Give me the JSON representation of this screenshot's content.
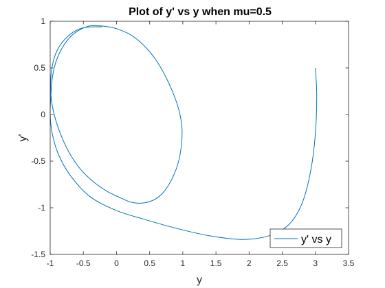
{
  "chart_data": {
    "type": "line",
    "title": "Plot of y' vs y when mu=0.5",
    "xlabel": "y",
    "ylabel": "y'",
    "xlim": [
      -1,
      3.5
    ],
    "ylim": [
      -1.5,
      1
    ],
    "xticks": [
      -1,
      -0.5,
      0,
      0.5,
      1,
      1.5,
      2,
      2.5,
      3,
      3.5
    ],
    "yticks": [
      -1.5,
      -1,
      -0.5,
      0,
      0.5,
      1
    ],
    "xtick_labels": [
      "-1",
      "-0.5",
      "0",
      "0.5",
      "1",
      "1.5",
      "2",
      "2.5",
      "3",
      "3.5"
    ],
    "ytick_labels": [
      "-1.5",
      "-1",
      "-0.5",
      "0",
      "0.5",
      "1"
    ],
    "grid": false,
    "legend": {
      "position": "bottom-right",
      "entries": [
        "y' vs y"
      ]
    },
    "series": [
      {
        "name": "y' vs y",
        "color": "#0072BD",
        "x": [
          3.0,
          3.02,
          3.0,
          2.93,
          2.8,
          2.6,
          2.3,
          1.9,
          1.4,
          0.9,
          0.4,
          0.0,
          -0.4,
          -0.7,
          -0.88,
          -0.97,
          -1.0,
          -0.99,
          -0.97,
          -0.92,
          -0.83,
          -0.7,
          -0.55,
          -0.4,
          -0.25,
          -0.12,
          0.0,
          0.2,
          0.4,
          0.6,
          0.78,
          0.92,
          0.985,
          0.98,
          0.93,
          0.83,
          0.7,
          0.55,
          0.38,
          0.22,
          0.05,
          -0.15,
          -0.35,
          -0.55,
          -0.72,
          -0.86,
          -0.95,
          -0.99,
          -0.99,
          -0.96,
          -0.9,
          -0.8,
          -0.66,
          -0.5,
          -0.35,
          -0.22
        ],
        "y": [
          0.5,
          0.2,
          -0.2,
          -0.6,
          -0.95,
          -1.18,
          -1.3,
          -1.34,
          -1.3,
          -1.22,
          -1.12,
          -1.03,
          -0.88,
          -0.65,
          -0.42,
          -0.2,
          0.0,
          0.2,
          0.38,
          0.55,
          0.7,
          0.83,
          0.91,
          0.95,
          0.95,
          0.94,
          0.92,
          0.86,
          0.75,
          0.58,
          0.35,
          0.1,
          -0.12,
          -0.32,
          -0.52,
          -0.7,
          -0.84,
          -0.92,
          -0.95,
          -0.94,
          -0.89,
          -0.82,
          -0.72,
          -0.58,
          -0.4,
          -0.18,
          0.03,
          0.22,
          0.4,
          0.55,
          0.68,
          0.79,
          0.88,
          0.93,
          0.94,
          0.94
        ]
      }
    ]
  }
}
